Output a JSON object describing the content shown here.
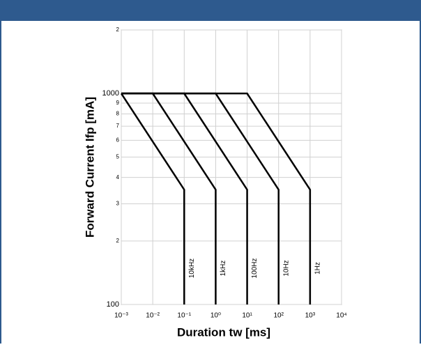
{
  "chart_data": {
    "type": "line",
    "x_label": "Duration tw [ms]",
    "y_label": "Forward Current Ifp [mA]",
    "xscale": "log",
    "yscale": "log",
    "grid": true,
    "color": "#000000",
    "xlim": [
      0.001,
      10000
    ],
    "ylim": [
      100,
      2000
    ],
    "xticks": [
      {
        "value": 0.001,
        "label": "10⁻³"
      },
      {
        "value": 0.01,
        "label": "10⁻²"
      },
      {
        "value": 0.1,
        "label": "10⁻¹"
      },
      {
        "value": 1,
        "label": "10⁰"
      },
      {
        "value": 10,
        "label": "10¹"
      },
      {
        "value": 100,
        "label": "10²"
      },
      {
        "value": 1000,
        "label": "10³"
      },
      {
        "value": 10000,
        "label": "10⁴"
      }
    ],
    "yticks": [
      100,
      {
        "value": 200,
        "label": "2"
      },
      {
        "value": 300,
        "label": "3"
      },
      {
        "value": 400,
        "label": "4"
      },
      {
        "value": 500,
        "label": "5"
      },
      {
        "value": 600,
        "label": "6"
      },
      {
        "value": 700,
        "label": "7"
      },
      {
        "value": 800,
        "label": "8"
      },
      {
        "value": 900,
        "label": "9"
      },
      1000,
      {
        "value": 2000,
        "label": "2"
      }
    ],
    "series": [
      {
        "name": "10kHz",
        "x": [
          0.001,
          0.1,
          0.1
        ],
        "values": [
          1000,
          350,
          100
        ]
      },
      {
        "name": "1kHz",
        "x": [
          0.001,
          0.01,
          1,
          1
        ],
        "values": [
          1000,
          1000,
          350,
          100
        ]
      },
      {
        "name": "100Hz",
        "x": [
          0.001,
          0.1,
          10,
          10
        ],
        "values": [
          1000,
          1000,
          350,
          100
        ]
      },
      {
        "name": "10Hz",
        "x": [
          0.001,
          1,
          100,
          100
        ],
        "values": [
          1000,
          1000,
          350,
          100
        ]
      },
      {
        "name": "1Hz",
        "x": [
          0.001,
          10,
          1000,
          1000
        ],
        "values": [
          1000,
          1000,
          350,
          100
        ]
      }
    ]
  }
}
